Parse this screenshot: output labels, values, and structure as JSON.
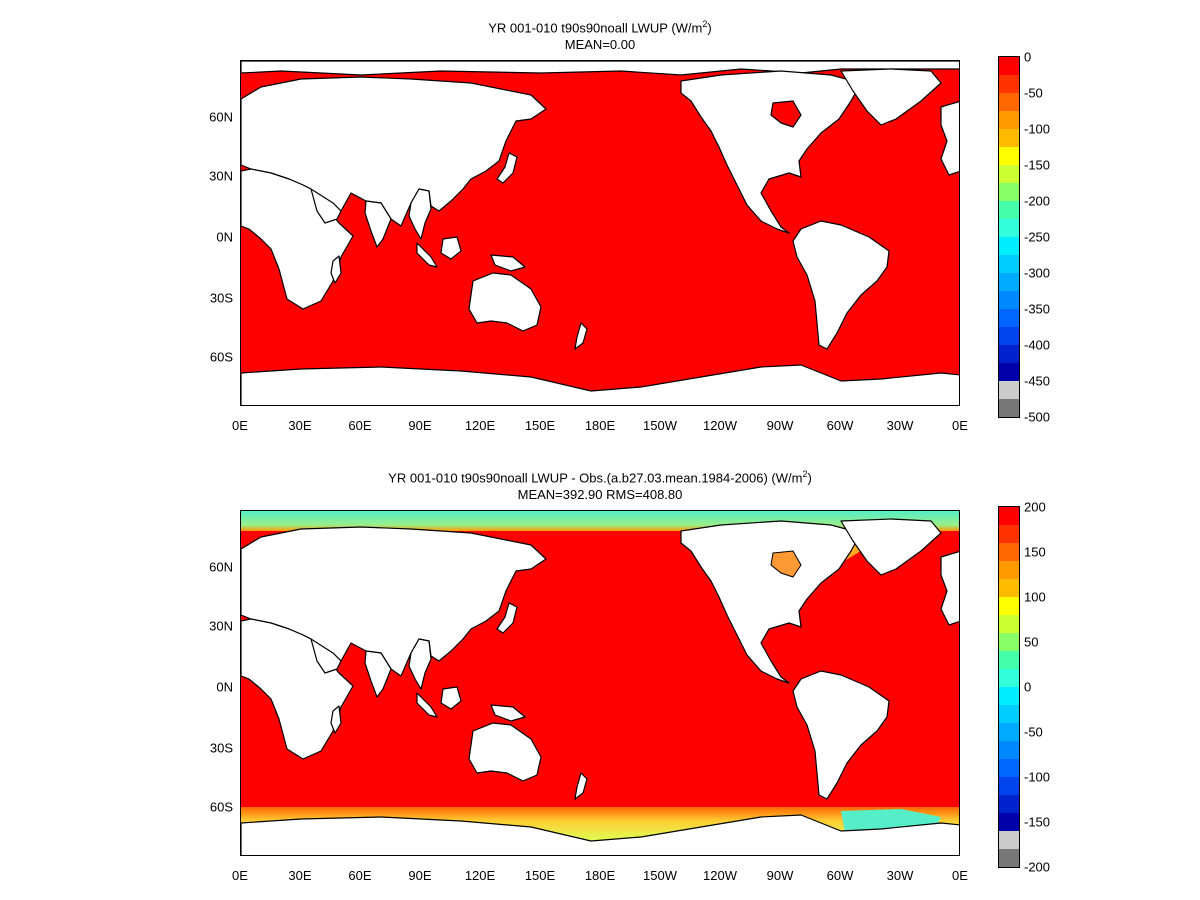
{
  "panels": [
    {
      "title_line1_pre": "YR 001-010 t90s90noall  LWUP (W/m",
      "title_sup": "2",
      "title_line1_post": ")",
      "title_line2": "MEAN=0.00",
      "colorbar": {
        "labels": [
          "0",
          "-50",
          "-100",
          "-150",
          "-200",
          "-250",
          "-300",
          "-350",
          "-400",
          "-450",
          "-500"
        ],
        "colors": [
          "#ff0000",
          "#ff3300",
          "#ff6600",
          "#ff9900",
          "#ffbb00",
          "#ffff00",
          "#ccff33",
          "#88ff66",
          "#44ffaa",
          "#33ffdd",
          "#00eeff",
          "#00ccff",
          "#00aaff",
          "#0088ff",
          "#0066ff",
          "#0044ee",
          "#0022cc",
          "#0000aa",
          "#cccccc",
          "#777777"
        ]
      }
    },
    {
      "title_line1_pre": "YR 001-010 t90s90noall LWUP - Obs.(a.b27.03.mean.1984-2006) (W/m",
      "title_sup": "2",
      "title_line1_post": ")",
      "title_line2": "MEAN=392.90 RMS=408.80",
      "colorbar": {
        "labels": [
          "200",
          "150",
          "100",
          "50",
          "0",
          "-50",
          "-100",
          "-150",
          "-200"
        ],
        "colors": [
          "#ff0000",
          "#ff3300",
          "#ff6600",
          "#ff9900",
          "#ffbb00",
          "#ffff00",
          "#ccff33",
          "#88ff66",
          "#44ffaa",
          "#33ffdd",
          "#00eeff",
          "#00ccff",
          "#00aaff",
          "#0088ff",
          "#0066ff",
          "#0044ee",
          "#0022cc",
          "#0000aa",
          "#cccccc",
          "#777777"
        ]
      }
    }
  ],
  "lat_labels": [
    "60N",
    "30N",
    "0N",
    "30S",
    "60S"
  ],
  "lon_labels": [
    "0E",
    "30E",
    "60E",
    "90E",
    "120E",
    "150E",
    "180E",
    "150W",
    "120W",
    "90W",
    "60W",
    "30W",
    "0E"
  ],
  "field_colors": {
    "ocean": "#ff0000",
    "land": "#ffffff",
    "arctic_diff": "#55eec8",
    "antarctic_diff": "#ffcc33"
  }
}
